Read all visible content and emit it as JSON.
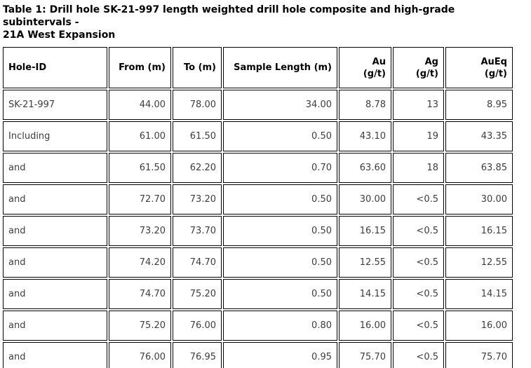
{
  "title_lines": [
    "Table 1: Drill hole SK-21-997 length weighted drill hole composite and high-grade subintervals -",
    "21A West Expansion"
  ],
  "table": {
    "columns": [
      {
        "id": "hole-id",
        "lines": [
          "Hole-ID"
        ]
      },
      {
        "id": "from-m",
        "lines": [
          "From (m)"
        ]
      },
      {
        "id": "to-m",
        "lines": [
          "To (m)"
        ]
      },
      {
        "id": "sample-length-m",
        "lines": [
          "Sample Length (m)"
        ]
      },
      {
        "id": "au-gpt",
        "lines": [
          "Au",
          "(g/t)"
        ]
      },
      {
        "id": "ag-gpt",
        "lines": [
          "Ag",
          "(g/t)"
        ]
      },
      {
        "id": "aueq-gpt",
        "lines": [
          "AuEq",
          "(g/t)"
        ]
      }
    ],
    "rows": [
      [
        "SK-21-997",
        "44.00",
        "78.00",
        "34.00",
        "8.78",
        "13",
        "8.95"
      ],
      [
        "Including",
        "61.00",
        "61.50",
        "0.50",
        "43.10",
        "19",
        "43.35"
      ],
      [
        "and",
        "61.50",
        "62.20",
        "0.70",
        "63.60",
        "18",
        "63.85"
      ],
      [
        "and",
        "72.70",
        "73.20",
        "0.50",
        "30.00",
        "<0.5",
        "30.00"
      ],
      [
        "and",
        "73.20",
        "73.70",
        "0.50",
        "16.15",
        "<0.5",
        "16.15"
      ],
      [
        "and",
        "74.20",
        "74.70",
        "0.50",
        "12.55",
        "<0.5",
        "12.55"
      ],
      [
        "and",
        "74.70",
        "75.20",
        "0.50",
        "14.15",
        "<0.5",
        "14.15"
      ],
      [
        "and",
        "75.20",
        "76.00",
        "0.80",
        "16.00",
        "<0.5",
        "16.00"
      ],
      [
        "and",
        "76.00",
        "76.95",
        "0.95",
        "75.70",
        "<0.5",
        "75.70"
      ]
    ]
  },
  "colors": {
    "border": "#000000",
    "title_text": "#000000",
    "cell_text": "#3d3d3d",
    "background": "#ffffff"
  }
}
